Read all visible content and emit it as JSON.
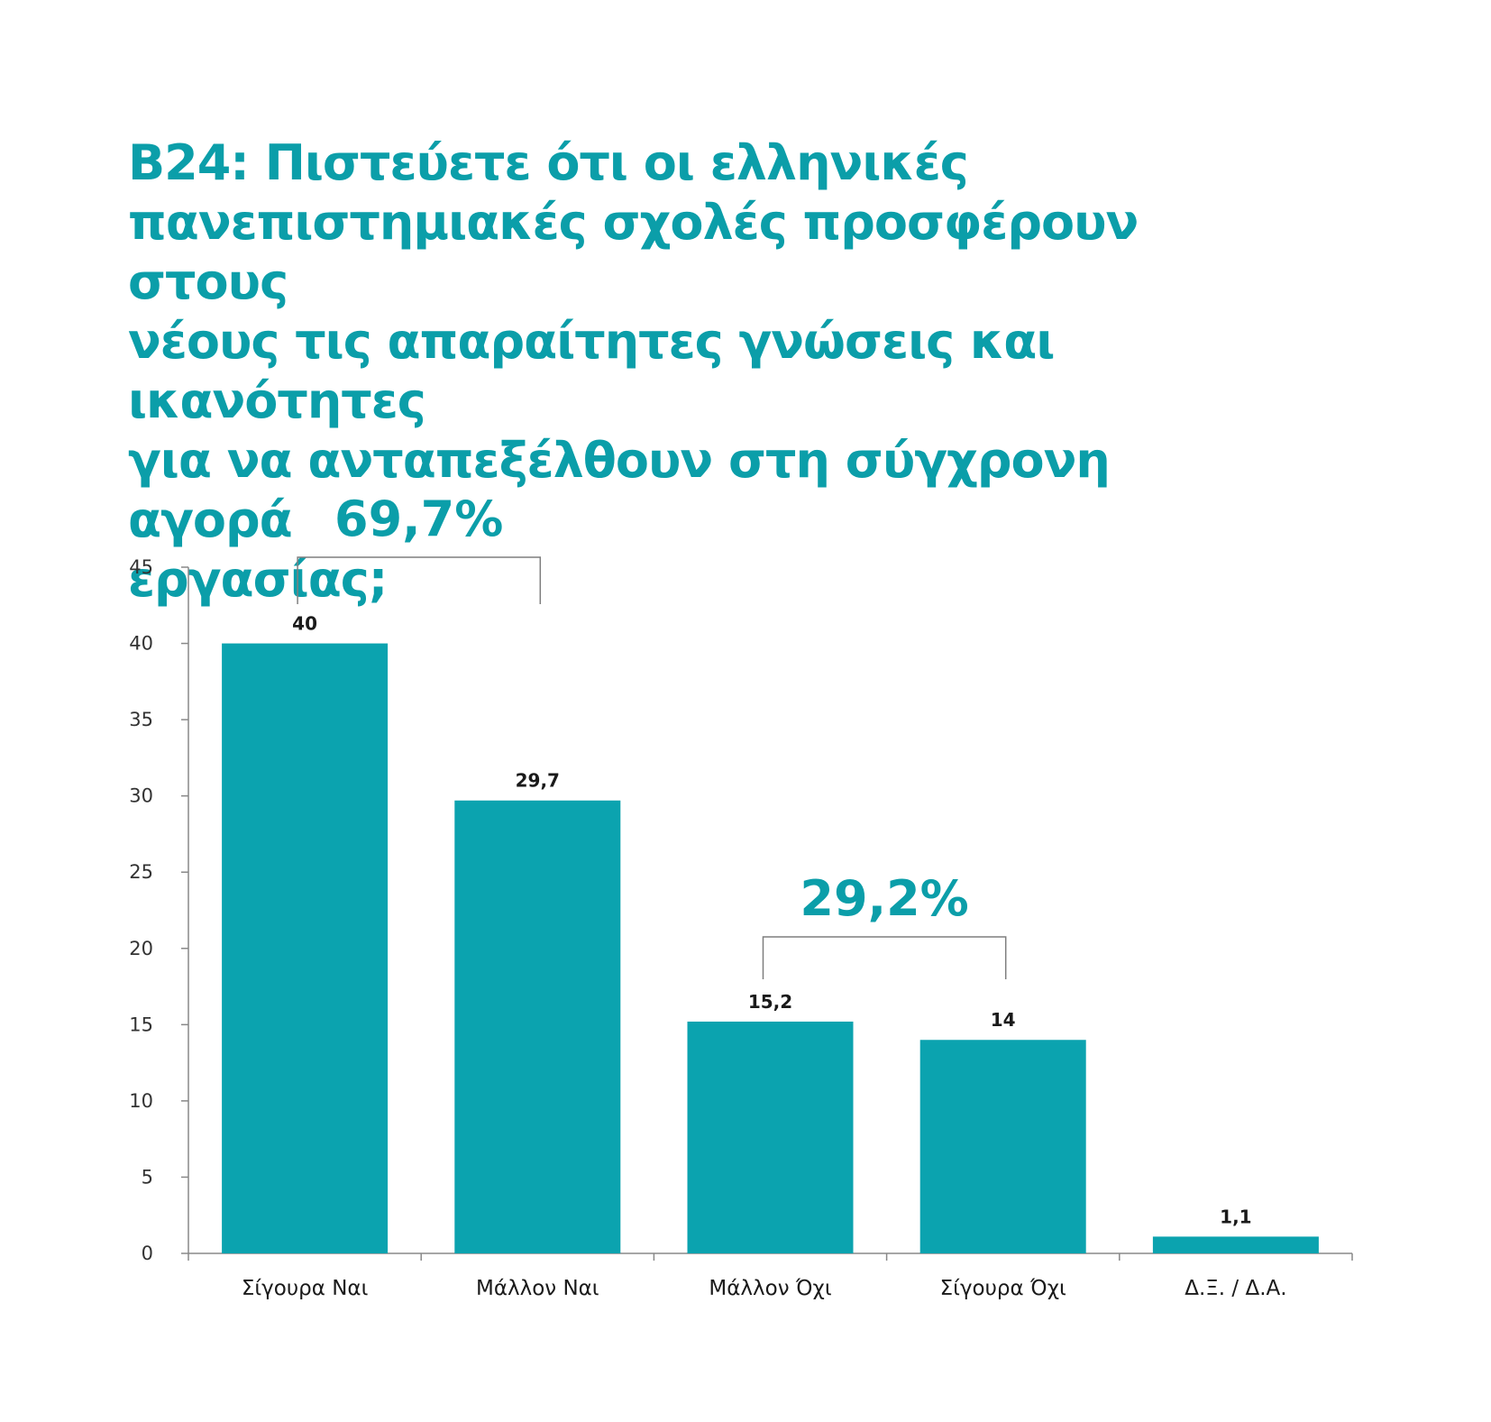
{
  "title": "B24: Πιστεύετε ότι οι ελληνικές\nπανεπιστημιακές σχολές προσφέρουν στους\nνέους τις απαραίτητες γνώσεις και ικανότητες\nγια να ανταπεξέλθουν στη σύγχρονη αγορά\nεργασίας;",
  "colors": {
    "accent": "#0ba3af",
    "title": "#0b9ea9",
    "axis": "#888888",
    "bracket": "#7f7f7f"
  },
  "chart_data": {
    "type": "bar",
    "categories": [
      "Σίγουρα Ναι",
      "Μάλλον Ναι",
      "Μάλλον Όχι",
      "Σίγουρα Όχι",
      "Δ.Ξ. / Δ.Α."
    ],
    "values": [
      40,
      29.7,
      15.2,
      14,
      1.1
    ],
    "data_labels": [
      "40",
      "29,7",
      "15,2",
      "14",
      "1,1"
    ],
    "ylim": [
      0,
      45
    ],
    "yticks": [
      0,
      5,
      10,
      15,
      20,
      25,
      30,
      35,
      40,
      45
    ],
    "grid": false,
    "legend": "none",
    "groups": [
      {
        "label": "69,7%",
        "from": 0,
        "to": 1
      },
      {
        "label": "29,2%",
        "from": 2,
        "to": 3
      }
    ]
  }
}
